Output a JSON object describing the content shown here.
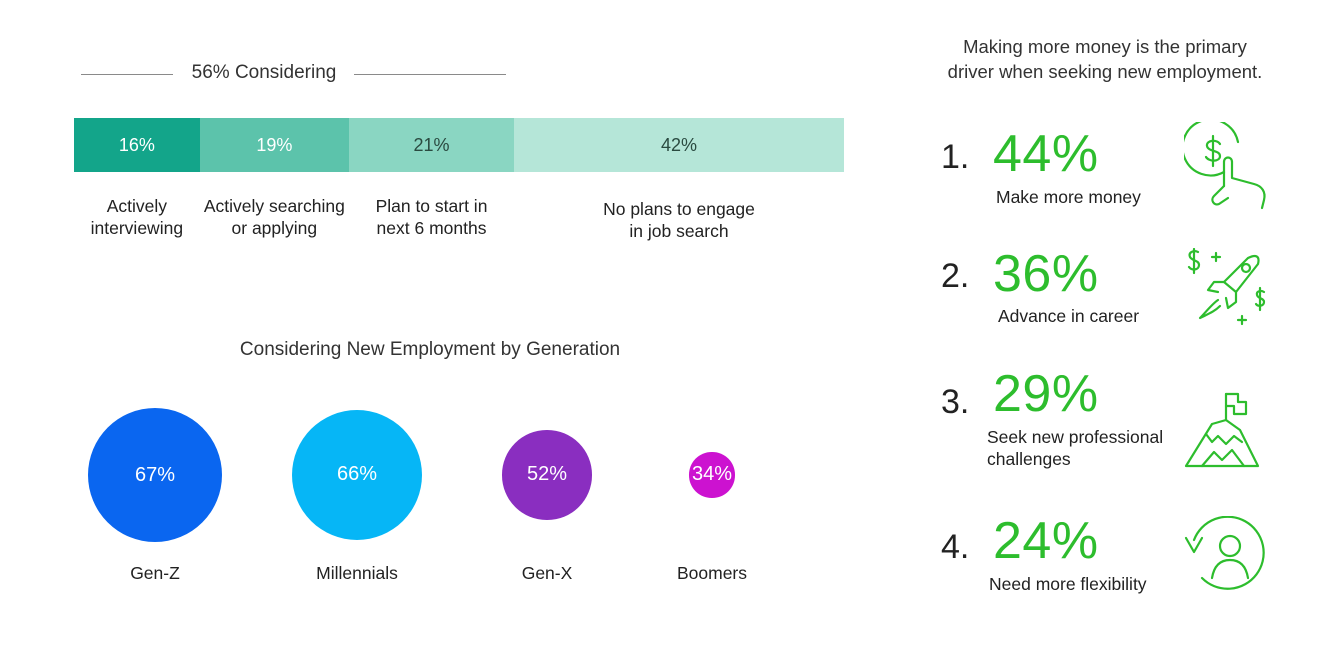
{
  "considering": {
    "title": "56% Considering",
    "chart_data": {
      "type": "bar",
      "categories": [
        "Actively\ninterviewing",
        "Actively searching\nor applying",
        "Plan to start in\nnext 6 months",
        "No plans to engage\nin job search"
      ],
      "values": [
        16,
        19,
        21,
        42
      ],
      "value_labels": [
        "16%",
        "19%",
        "21%",
        "42%"
      ],
      "colors": [
        "#13a58a",
        "#5cc3ab",
        "#8ad6c2",
        "#b5e6d8"
      ]
    }
  },
  "generation": {
    "title": "Considering New Employment by Generation",
    "chart_data": {
      "type": "bubble",
      "categories": [
        "Gen-Z",
        "Millennials",
        "Gen-X",
        "Boomers"
      ],
      "values": [
        67,
        66,
        52,
        34
      ],
      "value_labels": [
        "67%",
        "66%",
        "52%",
        "34%"
      ],
      "colors": [
        "#0a66f0",
        "#06b6f6",
        "#8a2ec0",
        "#cc12d0"
      ]
    }
  },
  "drivers": {
    "headline": "Making more money is the primary\ndriver when seeking new employment.",
    "accent_color": "#2dbd2d",
    "items": [
      {
        "rank": "1.",
        "value": "44%",
        "label": "Make more money",
        "icon": "money-hand-icon"
      },
      {
        "rank": "2.",
        "value": "36%",
        "label": "Advance in career",
        "icon": "rocket-money-icon"
      },
      {
        "rank": "3.",
        "value": "29%",
        "label": "Seek new professional\nchallenges",
        "icon": "mountain-flag-icon"
      },
      {
        "rank": "4.",
        "value": "24%",
        "label": "Need more flexibility",
        "icon": "person-cycle-icon"
      }
    ]
  }
}
